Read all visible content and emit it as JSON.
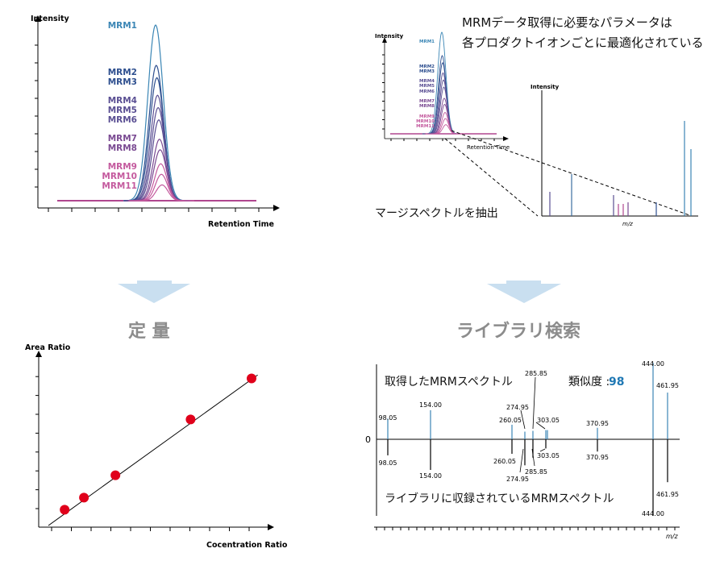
{
  "colors": {
    "mrm1": "#3b86b5",
    "mrm_blue": "#2e4f8f",
    "mrm_purple": "#5a4f93",
    "mrm_violet": "#7a4a92",
    "mrm_pink": "#c45a9e",
    "baseline": "#b0468f",
    "ion_blue": "#3b86b5",
    "score": "#1f78b4",
    "dot": "#e0001b",
    "arrow": "#c9dff0",
    "heading": "#8c8c8c"
  },
  "panels": {
    "chromatogram": {
      "y_label": "Intensity",
      "x_label": "Retention Time",
      "trace_labels": [
        "MRM1",
        "MRM2",
        "MRM3",
        "MRM4",
        "MRM5",
        "MRM6",
        "MRM7",
        "MRM8",
        "MRM9",
        "MRM10",
        "MRM11"
      ]
    },
    "merge": {
      "caption_line1": "MRMデータ取得に必要なパラメータは",
      "caption_line2": "各プロダクトイオンごとに最適化されている",
      "mini_y_label": "Intensity",
      "mini_x_label": "Retention Time",
      "spectrum_y_label": "Intensity",
      "spectrum_x_label": "m/z",
      "extract_label": "マージスペクトルを抽出"
    },
    "quant": {
      "heading": "定 量",
      "y_label": "Area Ratio",
      "x_label": "Cocentration Ratio"
    },
    "library": {
      "heading": "ライブラリ検索",
      "acquired_label": "取得したMRMスペクトル",
      "similarity_label": "類似度 :",
      "similarity_value": "98",
      "library_label": "ライブラリに収録されているMRMスペクトル",
      "zero_label": "0",
      "x_label": "m/z",
      "peak_labels": [
        "98.05",
        "154.00",
        "260.05",
        "274.95",
        "285.85",
        "303.05",
        "370.95",
        "444.00",
        "461.95"
      ]
    }
  },
  "chart_data": [
    {
      "type": "line",
      "title": "",
      "xlabel": "Retention Time",
      "ylabel": "Intensity",
      "series": [
        {
          "name": "MRM1",
          "relative_height": 1.0
        },
        {
          "name": "MRM2",
          "relative_height": 0.77
        },
        {
          "name": "MRM3",
          "relative_height": 0.7
        },
        {
          "name": "MRM4",
          "relative_height": 0.6
        },
        {
          "name": "MRM5",
          "relative_height": 0.53
        },
        {
          "name": "MRM6",
          "relative_height": 0.46
        },
        {
          "name": "MRM7",
          "relative_height": 0.35
        },
        {
          "name": "MRM8",
          "relative_height": 0.29
        },
        {
          "name": "MRM9",
          "relative_height": 0.21
        },
        {
          "name": "MRM10",
          "relative_height": 0.15
        },
        {
          "name": "MRM11",
          "relative_height": 0.09
        }
      ]
    },
    {
      "type": "scatter",
      "title": "",
      "xlabel": "Cocentration Ratio",
      "ylabel": "Area Ratio",
      "xlim": [
        0,
        10
      ],
      "ylim": [
        0,
        10
      ],
      "x": [
        0.8,
        1.75,
        3.3,
        7.0,
        10.0
      ],
      "y": [
        0.85,
        1.5,
        2.7,
        5.7,
        7.9
      ],
      "fit_line": {
        "slope": 0.785,
        "intercept": 0.0
      }
    },
    {
      "type": "bar",
      "title": "",
      "xlabel": "m/z",
      "categories": [
        "98.05",
        "154.00",
        "260.05",
        "274.95",
        "285.85",
        "303.05",
        "370.95",
        "444.00",
        "461.95"
      ],
      "series": [
        {
          "name": "取得したMRMスペクトル",
          "values": [
            27,
            38,
            19,
            10,
            11,
            12,
            15,
            100,
            61
          ]
        },
        {
          "name": "ライブラリに収録されているMRMスペクトル",
          "values": [
            21,
            40,
            19,
            34,
            24,
            12,
            16,
            100,
            56
          ]
        }
      ]
    }
  ]
}
